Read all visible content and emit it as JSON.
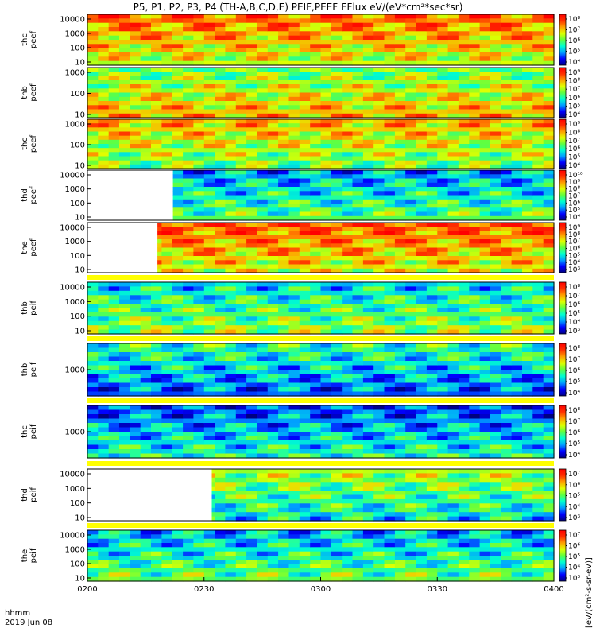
{
  "chart_data": {
    "type": "heatmap",
    "title": "P5, P1, P2, P3, P4 (TH-A,B,C,D,E) PEIF,PEEF EFlux eV/(eV*cm²*sec*sr)",
    "time_label": "hhmm",
    "date_label": "2019 Jun 08",
    "x_range": [
      "0200",
      "0400"
    ],
    "x_ticks": [
      "0200",
      "0230",
      "0300",
      "0330",
      "0400"
    ],
    "colorbar_unit": "[eV/(cm²-s-sr-eV)]",
    "colormap": [
      "#000080",
      "#0000ff",
      "#00a0ff",
      "#00ffd0",
      "#60ff40",
      "#e0ff00",
      "#ffa000",
      "#ff3000",
      "#ff0000"
    ],
    "panels": [
      {
        "label": [
          "thc",
          "peef"
        ],
        "y_ticks": [
          "10000",
          "1000",
          "100",
          "10"
        ],
        "cbar_ticks": [
          "10⁸",
          "10⁷",
          "10⁶",
          "10⁵",
          "10⁴"
        ],
        "data_start": "0200",
        "level": 0.7
      },
      {
        "label": [
          "thb",
          "peef"
        ],
        "y_ticks": [
          "1000",
          "100",
          "10"
        ],
        "cbar_ticks": [
          "10⁹",
          "10⁸",
          "10⁷",
          "10⁶",
          "10⁵",
          "10⁴"
        ],
        "data_start": "0200",
        "level": 0.62
      },
      {
        "label": [
          "thc",
          "peef"
        ],
        "y_ticks": [
          "1000",
          "100",
          "10"
        ],
        "cbar_ticks": [
          "10⁹",
          "10⁸",
          "10⁷",
          "10⁶",
          "10⁵",
          "10⁴"
        ],
        "data_start": "0200",
        "level": 0.6
      },
      {
        "label": [
          "thd",
          "peef"
        ],
        "y_ticks": [
          "10000",
          "1000",
          "100",
          "10"
        ],
        "cbar_ticks": [
          "10¹⁰",
          "10⁹",
          "10⁸",
          "10⁷",
          "10⁶",
          "10⁵",
          "10⁴"
        ],
        "data_start": "0222",
        "level": 0.38
      },
      {
        "label": [
          "the",
          "peef"
        ],
        "y_ticks": [
          "10000",
          "1000",
          "100",
          "10"
        ],
        "cbar_ticks": [
          "10⁹",
          "10⁸",
          "10⁷",
          "10⁶",
          "10⁵",
          "10⁴",
          "10³"
        ],
        "data_start": "0218",
        "level": 0.72
      },
      {
        "label": [
          "thb",
          "peif"
        ],
        "y_ticks": [
          "10000",
          "1000",
          "100",
          "10"
        ],
        "cbar_ticks": [
          "10⁸",
          "10⁷",
          "10⁶",
          "10⁵",
          "10⁴",
          "10³"
        ],
        "data_start": "0200",
        "level": 0.45
      },
      {
        "label": [
          "thb",
          "peif"
        ],
        "y_ticks": [
          "1000"
        ],
        "cbar_ticks": [
          "10⁸",
          "10⁷",
          "10⁶",
          "10⁵",
          "10⁴"
        ],
        "data_start": "0200",
        "level": 0.3
      },
      {
        "label": [
          "thc",
          "peif"
        ],
        "y_ticks": [
          "1000"
        ],
        "cbar_ticks": [
          "10⁸",
          "10⁷",
          "10⁶",
          "10⁵",
          "10⁴"
        ],
        "data_start": "0200",
        "level": 0.3
      },
      {
        "label": [
          "thd",
          "peif"
        ],
        "y_ticks": [
          "10000",
          "1000",
          "100",
          "10"
        ],
        "cbar_ticks": [
          "10⁷",
          "10⁶",
          "10⁵",
          "10⁴",
          "10³"
        ],
        "data_start": "0232",
        "level": 0.45
      },
      {
        "label": [
          "the",
          "peif"
        ],
        "y_ticks": [
          "10000",
          "1000",
          "100",
          "10"
        ],
        "cbar_ticks": [
          "10⁷",
          "10⁶",
          "10⁵",
          "10⁴",
          "10³"
        ],
        "data_start": "0200",
        "level": 0.4
      }
    ]
  }
}
